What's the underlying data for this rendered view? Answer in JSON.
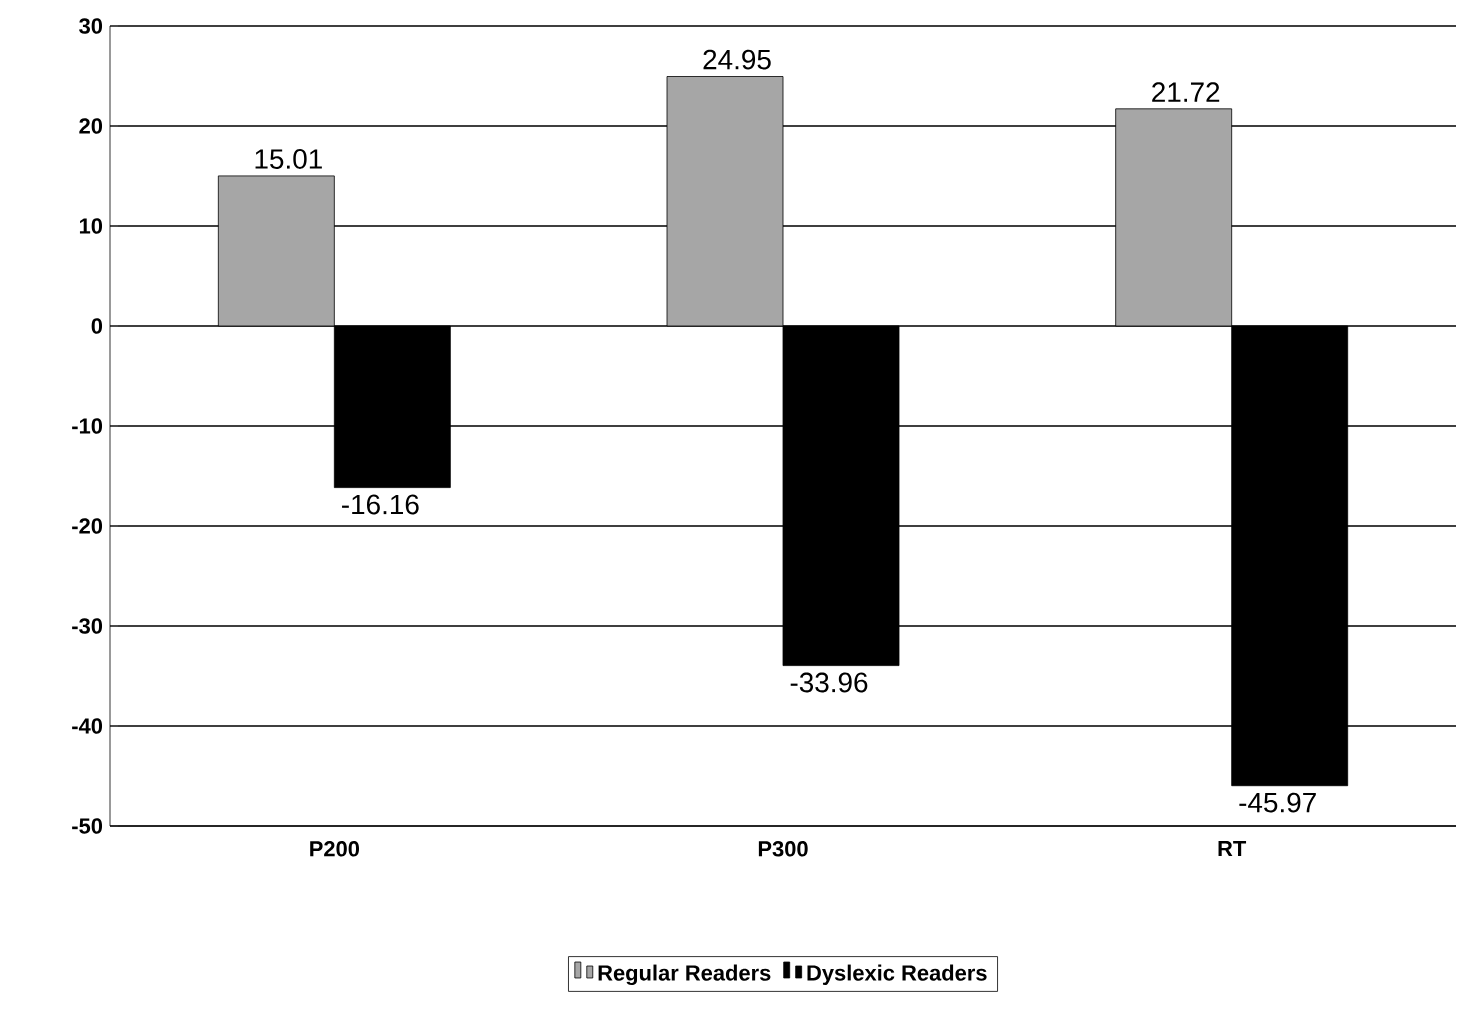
{
  "chart_data": {
    "type": "bar",
    "categories": [
      "P200",
      "P300",
      "RT"
    ],
    "series": [
      {
        "name": "Regular Readers",
        "color": "#a6a6a6",
        "values": [
          15.01,
          24.95,
          21.72
        ]
      },
      {
        "name": "Dyslexic Readers",
        "color": "#000000",
        "values": [
          -16.16,
          -33.96,
          -45.97
        ]
      }
    ],
    "ylim": [
      -50,
      30
    ],
    "yticks": [
      -50,
      -40,
      -30,
      -20,
      -10,
      0,
      10,
      20,
      30
    ],
    "grid": "y",
    "legend": "bottom",
    "data_labels": true
  }
}
